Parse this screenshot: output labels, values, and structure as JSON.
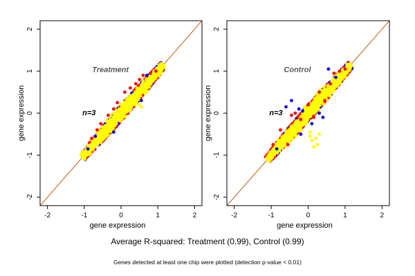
{
  "footer": {
    "main": "Average R-squared: Treatment (0.99), Control (0.99)",
    "note": "Genes detected at least one chip were plotted (detection p-value < 0.01)"
  },
  "colors": {
    "identity_line": "#c05a10",
    "series_present_both": "#ffff00",
    "series_red": "#ff0000",
    "series_blue": "#0000ff"
  },
  "chart_data": [
    {
      "type": "scatter",
      "title": "Treatment",
      "annotation": "n=3",
      "xlabel": "gene expression",
      "ylabel": "gene expression",
      "xlim": [
        -2.2,
        2.2
      ],
      "ylim": [
        -2.2,
        2.2
      ],
      "xticks": [
        -2,
        -1,
        0,
        1,
        2
      ],
      "yticks": [
        -2,
        -1,
        0,
        1,
        2
      ],
      "grid": false,
      "reference_line": "y = x",
      "point_cloud": {
        "start": [
          -1.05,
          -1.05
        ],
        "end": [
          1.15,
          1.15
        ]
      },
      "series": [
        {
          "color": "#ff0000",
          "values": [
            [
              -0.55,
              -0.25
            ],
            [
              -0.35,
              -0.05
            ],
            [
              0.1,
              0.5
            ],
            [
              0.4,
              0.7
            ],
            [
              0.6,
              0.9
            ],
            [
              -0.2,
              0.1
            ],
            [
              0.25,
              0.6
            ],
            [
              -0.8,
              -0.6
            ],
            [
              0.8,
              0.95
            ],
            [
              -0.1,
              0.25
            ],
            [
              0.95,
              1.0
            ],
            [
              -0.65,
              -0.4
            ],
            [
              0.5,
              0.8
            ]
          ]
        },
        {
          "color": "#0000ff",
          "values": [
            [
              -0.9,
              -0.85
            ],
            [
              -0.2,
              -0.45
            ],
            [
              0.55,
              0.3
            ],
            [
              0.7,
              0.9
            ],
            [
              -0.7,
              -0.55
            ]
          ]
        },
        {
          "color": "#ffff00",
          "values": [
            [
              0.5,
              0.2
            ],
            [
              0.55,
              0.15
            ]
          ]
        }
      ]
    },
    {
      "type": "scatter",
      "title": "Control",
      "annotation": "n=3",
      "xlabel": "gene expression",
      "ylabel": "gene expression",
      "xlim": [
        -2.2,
        2.2
      ],
      "ylim": [
        -2.2,
        2.2
      ],
      "xticks": [
        -2,
        -1,
        0,
        1,
        2
      ],
      "yticks": [
        -2,
        -1,
        0,
        1,
        2
      ],
      "grid": false,
      "reference_line": "y = x",
      "point_cloud": {
        "start": [
          -1.1,
          -1.1
        ],
        "end": [
          1.15,
          1.15
        ]
      },
      "series": [
        {
          "color": "#ff0000",
          "values": [
            [
              -0.95,
              -0.75
            ],
            [
              -0.45,
              -0.05
            ],
            [
              -0.2,
              -0.15
            ],
            [
              0.3,
              0.5
            ],
            [
              0.6,
              0.7
            ],
            [
              -0.75,
              -0.4
            ],
            [
              0.0,
              0.2
            ],
            [
              0.85,
              1.0
            ],
            [
              0.45,
              0.3
            ],
            [
              -0.55,
              -0.75
            ],
            [
              0.7,
              0.95
            ],
            [
              -0.35,
              0.0
            ],
            [
              0.15,
              -0.1
            ],
            [
              1.0,
              1.05
            ]
          ]
        },
        {
          "color": "#0000ff",
          "values": [
            [
              -0.6,
              0.15
            ],
            [
              -0.45,
              0.3
            ],
            [
              -0.25,
              0.1
            ],
            [
              -0.15,
              0.05
            ],
            [
              0.3,
              0.0
            ],
            [
              0.4,
              -0.1
            ],
            [
              -0.85,
              -0.85
            ],
            [
              -0.2,
              -0.5
            ],
            [
              0.1,
              -0.25
            ],
            [
              0.75,
              0.85
            ],
            [
              0.55,
              1.05
            ]
          ]
        },
        {
          "color": "#ffff00",
          "values": [
            [
              0.05,
              -0.55
            ],
            [
              0.1,
              -0.65
            ],
            [
              0.2,
              -0.6
            ],
            [
              0.25,
              -0.75
            ],
            [
              0.15,
              -0.8
            ],
            [
              0.05,
              -0.45
            ],
            [
              0.3,
              -0.5
            ]
          ]
        }
      ]
    }
  ]
}
